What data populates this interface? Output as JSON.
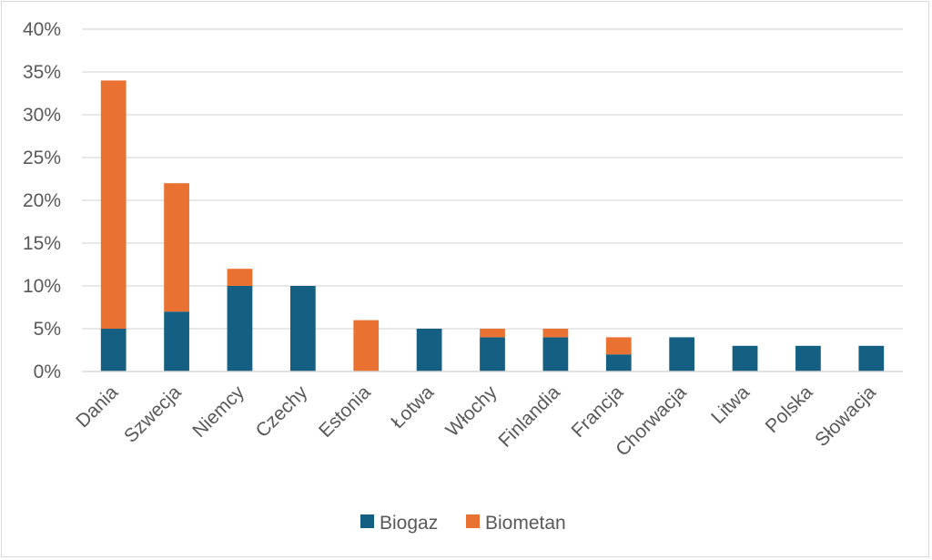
{
  "chart_data": {
    "type": "bar",
    "stacked": true,
    "categories": [
      "Dania",
      "Szwecja",
      "Niemcy",
      "Czechy",
      "Estonia",
      "Łotwa",
      "Włochy",
      "Finlandia",
      "Francja",
      "Chorwacja",
      "Litwa",
      "Polska",
      "Słowacja"
    ],
    "series": [
      {
        "name": "Biogaz",
        "color": "#156082",
        "values": [
          5,
          7,
          10,
          10,
          0,
          5,
          4,
          4,
          2,
          4,
          3,
          3,
          3
        ]
      },
      {
        "name": "Biometan",
        "color": "#e97132",
        "values": [
          29,
          15,
          2,
          0,
          6,
          0,
          1,
          1,
          2,
          0,
          0,
          0,
          0
        ]
      }
    ],
    "ylim": [
      0,
      40
    ],
    "yticks": [
      "0%",
      "5%",
      "10%",
      "15%",
      "20%",
      "25%",
      "30%",
      "35%",
      "40%"
    ],
    "ytick_values": [
      0,
      5,
      10,
      15,
      20,
      25,
      30,
      35,
      40
    ],
    "grid": true,
    "legend_position": "bottom"
  }
}
